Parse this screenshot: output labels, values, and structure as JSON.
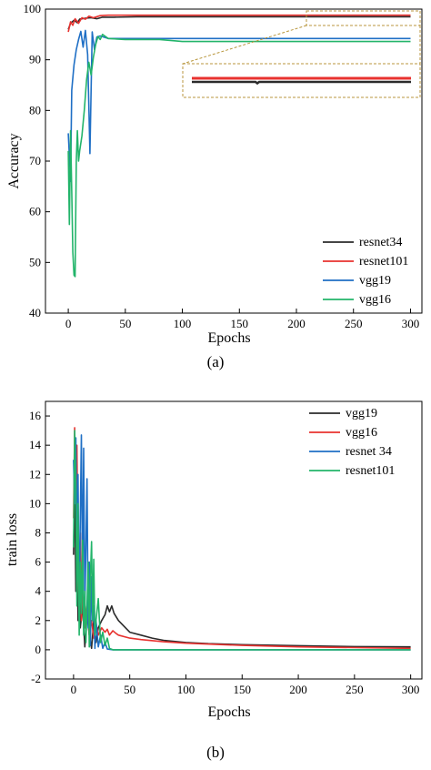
{
  "chart_data": [
    {
      "type": "line",
      "panel": "a",
      "caption": "(a)",
      "xlabel": "Epochs",
      "ylabel": "Accuracy",
      "xlim": [
        -20,
        310
      ],
      "ylim": [
        40,
        100
      ],
      "xticks": [
        0,
        50,
        100,
        150,
        200,
        250,
        300
      ],
      "yticks": [
        40,
        50,
        60,
        70,
        80,
        90,
        100
      ],
      "legend_position": "bottom-right",
      "inset_zoom": true,
      "series": [
        {
          "name": "resnet34",
          "color": "#2b2b2b",
          "points": [
            [
              0,
              96
            ],
            [
              2,
              97.2
            ],
            [
              5,
              97.8
            ],
            [
              8,
              97.3
            ],
            [
              10,
              98
            ],
            [
              15,
              98.2
            ],
            [
              20,
              98.3
            ],
            [
              25,
              98.1
            ],
            [
              30,
              98.4
            ],
            [
              40,
              98.4
            ],
            [
              60,
              98.5
            ],
            [
              100,
              98.5
            ],
            [
              150,
              98.5
            ],
            [
              200,
              98.5
            ],
            [
              250,
              98.5
            ],
            [
              300,
              98.5
            ]
          ]
        },
        {
          "name": "resnet101",
          "color": "#e8322f",
          "points": [
            [
              0,
              95.5
            ],
            [
              2,
              97.5
            ],
            [
              4,
              96.8
            ],
            [
              6,
              98.1
            ],
            [
              9,
              97.2
            ],
            [
              12,
              98.3
            ],
            [
              15,
              98
            ],
            [
              18,
              98.6
            ],
            [
              22,
              98.3
            ],
            [
              28,
              98.7
            ],
            [
              35,
              98.8
            ],
            [
              60,
              98.8
            ],
            [
              100,
              98.8
            ],
            [
              150,
              98.8
            ],
            [
              200,
              98.8
            ],
            [
              250,
              98.8
            ],
            [
              300,
              98.8
            ]
          ]
        },
        {
          "name": "vgg19",
          "color": "#1f6fc5",
          "points": [
            [
              0,
              75.5
            ],
            [
              2,
              66
            ],
            [
              3,
              84
            ],
            [
              5,
              89
            ],
            [
              7,
              92
            ],
            [
              9,
              94
            ],
            [
              11,
              95.6
            ],
            [
              13,
              92.5
            ],
            [
              15,
              95.8
            ],
            [
              17,
              91
            ],
            [
              19,
              71.5
            ],
            [
              21,
              95.5
            ],
            [
              23,
              92
            ],
            [
              25,
              94.5
            ],
            [
              28,
              94.7
            ],
            [
              35,
              94.2
            ],
            [
              60,
              94.2
            ],
            [
              100,
              94.2
            ],
            [
              150,
              94.2
            ],
            [
              200,
              94.2
            ],
            [
              250,
              94.2
            ],
            [
              300,
              94.2
            ]
          ]
        },
        {
          "name": "vgg16",
          "color": "#22b46a",
          "points": [
            [
              0,
              72
            ],
            [
              1,
              57.5
            ],
            [
              2,
              76
            ],
            [
              3,
              64
            ],
            [
              4,
              52
            ],
            [
              5,
              47.5
            ],
            [
              6,
              47.2
            ],
            [
              7,
              70
            ],
            [
              8,
              76
            ],
            [
              9,
              70
            ],
            [
              10,
              72
            ],
            [
              12,
              75
            ],
            [
              14,
              80
            ],
            [
              16,
              86
            ],
            [
              18,
              89.5
            ],
            [
              20,
              87
            ],
            [
              22,
              90.5
            ],
            [
              24,
              93
            ],
            [
              26,
              94.6
            ],
            [
              28,
              94
            ],
            [
              30,
              95
            ],
            [
              35,
              94.2
            ],
            [
              50,
              94
            ],
            [
              80,
              94
            ],
            [
              100,
              93.6
            ],
            [
              150,
              93.6
            ],
            [
              200,
              93.6
            ],
            [
              250,
              93.6
            ],
            [
              300,
              93.6
            ]
          ]
        }
      ]
    },
    {
      "type": "line",
      "panel": "b",
      "caption": "(b)",
      "xlabel": "Epochs",
      "ylabel": "train loss",
      "xlim": [
        -25,
        310
      ],
      "ylim": [
        -2,
        17
      ],
      "xticks": [
        0,
        50,
        100,
        150,
        200,
        250,
        300
      ],
      "yticks": [
        -2,
        0,
        2,
        4,
        6,
        8,
        10,
        12,
        14,
        16
      ],
      "legend_position": "top-right",
      "series": [
        {
          "name": "vgg19",
          "color": "#2b2b2b",
          "points": [
            [
              0,
              6.5
            ],
            [
              1,
              12
            ],
            [
              2,
              4
            ],
            [
              3,
              9
            ],
            [
              4,
              2
            ],
            [
              5,
              5
            ],
            [
              6,
              1.5
            ],
            [
              8,
              3
            ],
            [
              10,
              0.2
            ],
            [
              12,
              2.5
            ],
            [
              14,
              1
            ],
            [
              16,
              0.1
            ],
            [
              18,
              2
            ],
            [
              20,
              0.5
            ],
            [
              22,
              1.5
            ],
            [
              25,
              2
            ],
            [
              28,
              2.4
            ],
            [
              30,
              3
            ],
            [
              32,
              2.6
            ],
            [
              34,
              3
            ],
            [
              36,
              2.5
            ],
            [
              40,
              2
            ],
            [
              45,
              1.6
            ],
            [
              50,
              1.2
            ],
            [
              60,
              1
            ],
            [
              70,
              0.8
            ],
            [
              80,
              0.65
            ],
            [
              100,
              0.5
            ],
            [
              120,
              0.42
            ],
            [
              150,
              0.35
            ],
            [
              200,
              0.28
            ],
            [
              250,
              0.22
            ],
            [
              300,
              0.2
            ]
          ]
        },
        {
          "name": "vgg16",
          "color": "#e8322f",
          "points": [
            [
              0,
              9
            ],
            [
              1,
              15.2
            ],
            [
              2,
              10
            ],
            [
              3,
              14
            ],
            [
              4,
              6
            ],
            [
              5,
              3
            ],
            [
              6,
              8
            ],
            [
              7,
              2
            ],
            [
              8,
              4
            ],
            [
              10,
              1.5
            ],
            [
              12,
              3
            ],
            [
              14,
              1
            ],
            [
              16,
              2
            ],
            [
              18,
              0.8
            ],
            [
              20,
              1.8
            ],
            [
              22,
              1
            ],
            [
              25,
              1.5
            ],
            [
              28,
              1.2
            ],
            [
              30,
              1.4
            ],
            [
              32,
              1
            ],
            [
              35,
              1.3
            ],
            [
              38,
              1.1
            ],
            [
              40,
              1
            ],
            [
              50,
              0.8
            ],
            [
              60,
              0.7
            ],
            [
              80,
              0.55
            ],
            [
              100,
              0.45
            ],
            [
              150,
              0.3
            ],
            [
              200,
              0.2
            ],
            [
              250,
              0.15
            ],
            [
              300,
              0.1
            ]
          ]
        },
        {
          "name": "resnet 34",
          "color": "#1f6fc5",
          "points": [
            [
              0,
              13
            ],
            [
              1,
              10
            ],
            [
              2,
              14.5
            ],
            [
              3,
              6
            ],
            [
              4,
              12
            ],
            [
              5,
              2
            ],
            [
              6,
              9
            ],
            [
              7,
              14.7
            ],
            [
              8,
              4
            ],
            [
              9,
              13.8
            ],
            [
              10,
              3
            ],
            [
              11,
              7
            ],
            [
              12,
              11.7
            ],
            [
              13,
              1.5
            ],
            [
              14,
              6
            ],
            [
              15,
              0.3
            ],
            [
              16,
              5
            ],
            [
              17,
              2
            ],
            [
              18,
              3
            ],
            [
              19,
              0.1
            ],
            [
              20,
              2
            ],
            [
              22,
              0.2
            ],
            [
              24,
              1
            ],
            [
              26,
              0.1
            ],
            [
              28,
              0.5
            ],
            [
              30,
              0.05
            ],
            [
              35,
              0
            ],
            [
              50,
              0
            ],
            [
              100,
              0
            ],
            [
              150,
              0
            ],
            [
              200,
              0
            ],
            [
              250,
              0
            ],
            [
              300,
              0
            ]
          ]
        },
        {
          "name": "resnet101",
          "color": "#22b46a",
          "points": [
            [
              0,
              7
            ],
            [
              1,
              15
            ],
            [
              2,
              11
            ],
            [
              3,
              3
            ],
            [
              4,
              10
            ],
            [
              5,
              1
            ],
            [
              6,
              6
            ],
            [
              7,
              2.5
            ],
            [
              8,
              7.5
            ],
            [
              9,
              1
            ],
            [
              10,
              4
            ],
            [
              11,
              0.5
            ],
            [
              12,
              3
            ],
            [
              13,
              6
            ],
            [
              14,
              0.2
            ],
            [
              15,
              5
            ],
            [
              16,
              7.4
            ],
            [
              17,
              2
            ],
            [
              18,
              6.2
            ],
            [
              19,
              1
            ],
            [
              20,
              2
            ],
            [
              22,
              3.5
            ],
            [
              24,
              0.5
            ],
            [
              26,
              1.2
            ],
            [
              28,
              0.3
            ],
            [
              30,
              0.8
            ],
            [
              32,
              0.1
            ],
            [
              35,
              0
            ],
            [
              50,
              0
            ],
            [
              100,
              0
            ],
            [
              150,
              0
            ],
            [
              200,
              0
            ],
            [
              250,
              0
            ],
            [
              300,
              0
            ]
          ]
        }
      ]
    }
  ]
}
